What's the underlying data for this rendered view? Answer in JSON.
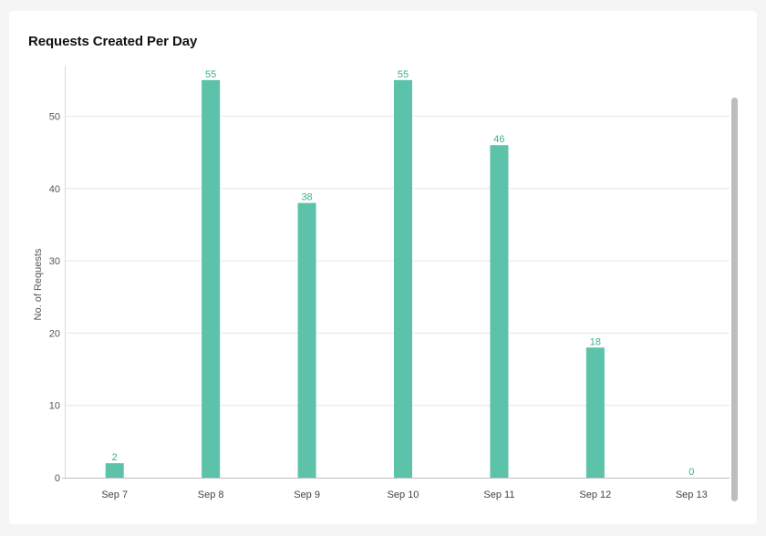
{
  "card": {
    "title": "Requests Created Per Day"
  },
  "chart_data": {
    "type": "bar",
    "title": "Requests Created Per Day",
    "xlabel": "",
    "ylabel": "No. of Requests",
    "categories": [
      "Sep 7",
      "Sep 8",
      "Sep 9",
      "Sep 10",
      "Sep 11",
      "Sep 12",
      "Sep 13"
    ],
    "values": [
      2,
      55,
      38,
      55,
      46,
      18,
      0
    ],
    "ylim": [
      0,
      57
    ],
    "yticks": [
      0,
      10,
      20,
      30,
      40,
      50
    ],
    "grid": true,
    "data_labels": true,
    "bar_color": "#5cc2a9",
    "label_color": "#3bb08f"
  }
}
